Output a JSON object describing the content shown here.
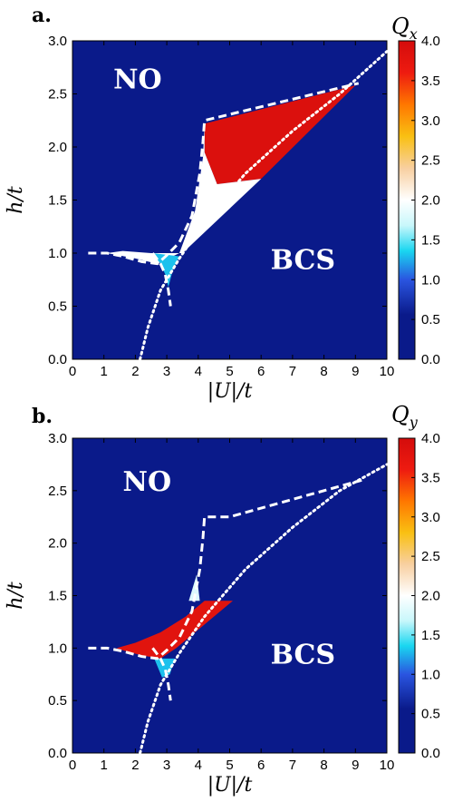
{
  "chart_data": [
    {
      "type": "heatmap",
      "panel_label": "a.",
      "colorbar_title": "Q",
      "colorbar_subscript": "x",
      "xlabel": "|U|/t",
      "ylabel": "h/t",
      "xlim": [
        0,
        10
      ],
      "ylim": [
        0,
        3
      ],
      "xticks": [
        "0",
        "1",
        "2",
        "3",
        "4",
        "5",
        "6",
        "7",
        "8",
        "9",
        "10"
      ],
      "yticks": [
        "0.0",
        "0.5",
        "1.0",
        "1.5",
        "2.0",
        "2.5",
        "3.0"
      ],
      "colorbar_ticks": [
        "0.0",
        "0.5",
        "1.0",
        "1.5",
        "2.0",
        "2.5",
        "3.0",
        "3.5",
        "4.0"
      ],
      "colorbar_range": [
        0,
        4
      ],
      "region_labels": [
        {
          "text": "NO",
          "x": 1.3,
          "y": 2.55
        },
        {
          "text": "BCS",
          "x": 6.3,
          "y": 0.85
        }
      ],
      "boundaries": [
        {
          "style": "dashed",
          "points": [
            [
              0.5,
              1.0
            ],
            [
              1.1,
              1.0
            ],
            [
              1.6,
              0.97
            ],
            [
              2.2,
              0.92
            ],
            [
              2.7,
              0.9
            ],
            [
              3.0,
              0.98
            ],
            [
              3.4,
              1.1
            ],
            [
              3.8,
              1.35
            ],
            [
              4.05,
              1.75
            ],
            [
              4.15,
              2.05
            ],
            [
              4.2,
              2.25
            ],
            [
              9.1,
              2.6
            ]
          ]
        },
        {
          "style": "dashed",
          "points": [
            [
              2.55,
              1.0
            ],
            [
              2.8,
              0.9
            ],
            [
              2.95,
              0.8
            ],
            [
              3.05,
              0.65
            ],
            [
              3.12,
              0.5
            ]
          ]
        },
        {
          "style": "dotted",
          "points": [
            [
              2.15,
              0.0
            ],
            [
              2.4,
              0.3
            ],
            [
              2.8,
              0.65
            ],
            [
              3.4,
              0.95
            ],
            [
              4.2,
              1.3
            ],
            [
              5.5,
              1.75
            ],
            [
              7.0,
              2.15
            ],
            [
              8.5,
              2.5
            ],
            [
              10.0,
              2.9
            ]
          ]
        }
      ],
      "regions": [
        {
          "value": 3.9,
          "points": [
            [
              4.2,
              2.22
            ],
            [
              9.0,
              2.58
            ],
            [
              6.0,
              1.7
            ],
            [
              4.6,
              1.65
            ],
            [
              4.2,
              1.95
            ]
          ]
        },
        {
          "value": 2.0,
          "points": [
            [
              1.1,
              1.0
            ],
            [
              2.0,
              0.95
            ],
            [
              2.7,
              0.9
            ],
            [
              3.4,
              1.0
            ],
            [
              3.9,
              1.4
            ],
            [
              4.15,
              1.9
            ],
            [
              4.2,
              2.22
            ],
            [
              4.2,
              1.95
            ],
            [
              4.6,
              1.65
            ],
            [
              6.0,
              1.7
            ],
            [
              3.5,
              1.0
            ],
            [
              2.5,
              1.0
            ],
            [
              1.6,
              1.02
            ]
          ]
        },
        {
          "value": 1.3,
          "points": [
            [
              2.55,
              1.0
            ],
            [
              2.8,
              0.9
            ],
            [
              2.95,
              0.8
            ],
            [
              3.05,
              0.68
            ],
            [
              3.2,
              0.85
            ],
            [
              3.4,
              0.97
            ]
          ]
        }
      ]
    },
    {
      "type": "heatmap",
      "panel_label": "b.",
      "colorbar_title": "Q",
      "colorbar_subscript": "y",
      "xlabel": "|U|/t",
      "ylabel": "h/t",
      "xlim": [
        0,
        10
      ],
      "ylim": [
        0,
        3
      ],
      "xticks": [
        "0",
        "1",
        "2",
        "3",
        "4",
        "5",
        "6",
        "7",
        "8",
        "9",
        "10"
      ],
      "yticks": [
        "0.0",
        "0.5",
        "1.0",
        "1.5",
        "2.0",
        "2.5",
        "3.0"
      ],
      "colorbar_ticks": [
        "0.0",
        "0.5",
        "1.0",
        "1.5",
        "2.0",
        "2.5",
        "3.0",
        "3.5",
        "4.0"
      ],
      "colorbar_range": [
        0,
        4
      ],
      "region_labels": [
        {
          "text": "NO",
          "x": 1.6,
          "y": 2.5
        },
        {
          "text": "BCS",
          "x": 6.3,
          "y": 0.85
        }
      ],
      "boundaries": [
        {
          "style": "dashed",
          "points": [
            [
              0.5,
              1.0
            ],
            [
              1.1,
              1.0
            ],
            [
              1.6,
              0.97
            ],
            [
              2.2,
              0.92
            ],
            [
              2.7,
              0.9
            ],
            [
              3.0,
              0.98
            ],
            [
              3.4,
              1.1
            ],
            [
              3.8,
              1.35
            ],
            [
              4.05,
              1.75
            ],
            [
              4.15,
              2.05
            ],
            [
              4.2,
              2.25
            ],
            [
              5.0,
              2.25
            ],
            [
              9.2,
              2.6
            ]
          ]
        },
        {
          "style": "dashed",
          "points": [
            [
              2.55,
              1.0
            ],
            [
              2.8,
              0.9
            ],
            [
              2.95,
              0.8
            ],
            [
              3.05,
              0.65
            ],
            [
              3.12,
              0.5
            ]
          ]
        },
        {
          "style": "dotted",
          "points": [
            [
              2.15,
              0.0
            ],
            [
              2.4,
              0.3
            ],
            [
              2.8,
              0.65
            ],
            [
              3.4,
              0.95
            ],
            [
              4.2,
              1.3
            ],
            [
              5.5,
              1.75
            ],
            [
              7.0,
              2.15
            ],
            [
              8.5,
              2.5
            ],
            [
              10.0,
              2.75
            ]
          ]
        }
      ],
      "regions": [
        {
          "value": 1.8,
          "points": [
            [
              3.7,
              1.45
            ],
            [
              3.95,
              1.7
            ],
            [
              4.05,
              1.45
            ]
          ]
        },
        {
          "value": 3.8,
          "points": [
            [
              1.4,
              1.0
            ],
            [
              2.0,
              1.05
            ],
            [
              2.8,
              1.15
            ],
            [
              3.6,
              1.3
            ],
            [
              4.2,
              1.45
            ],
            [
              5.1,
              1.45
            ],
            [
              3.9,
              1.15
            ],
            [
              3.3,
              1.0
            ],
            [
              2.8,
              0.9
            ],
            [
              2.2,
              0.93
            ],
            [
              1.7,
              0.97
            ]
          ]
        },
        {
          "value": 1.3,
          "points": [
            [
              2.6,
              0.9
            ],
            [
              2.85,
              0.72
            ],
            [
              3.1,
              0.75
            ],
            [
              3.25,
              0.9
            ]
          ]
        }
      ]
    }
  ]
}
